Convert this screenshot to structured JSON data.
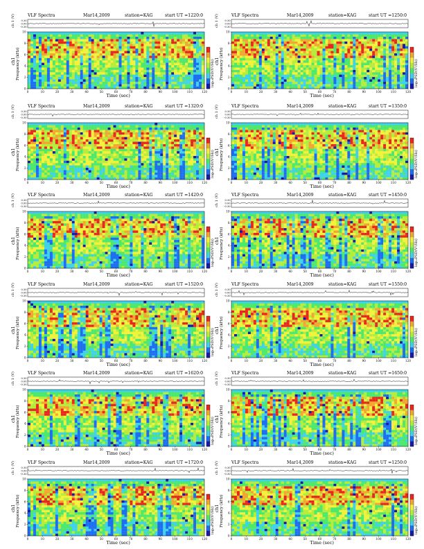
{
  "panels": [
    {
      "header": {
        "left": "VLF Spectra",
        "date": "Mar14,2009",
        "station": "station=KAG",
        "ut": "start  UT  =1220:0"
      },
      "ylabel": "Frequency  (kHz)",
      "chlabel": "ch1",
      "amplabel": "ch 1 (V)",
      "xlabel": "Time  (sec)",
      "cbar_label": "log₁₀PSD(V²/Hz)"
    },
    {
      "header": {
        "left": "VLF Spectra",
        "date": "Mar14,2009",
        "station": "station=KAG",
        "ut": "start  UT  =1250:0"
      },
      "ylabel": "Frequency  (kHz)",
      "chlabel": "ch1",
      "amplabel": "ch 1 (V)",
      "xlabel": "Time  (sec)",
      "cbar_label": "log₁₀PSD(V²/Hz)"
    },
    {
      "header": {
        "left": "VLF Spectra",
        "date": "Mar14,2009",
        "station": "station=KAG",
        "ut": "start  UT  =1320:0"
      },
      "ylabel": "Frequency  (kHz)",
      "chlabel": "ch1",
      "amplabel": "ch 1 (V)",
      "xlabel": "Time  (sec)",
      "cbar_label": "log₁₀PSD(V²/Hz)"
    },
    {
      "header": {
        "left": "VLF Spectra",
        "date": "Mar14,2009",
        "station": "station=KAG",
        "ut": "start  UT  =1350:0"
      },
      "ylabel": "Frequency  (kHz)",
      "chlabel": "ch1",
      "amplabel": "ch 1 (V)",
      "xlabel": "Time  (sec)",
      "cbar_label": "log₁₀PSD(V²/Hz)"
    },
    {
      "header": {
        "left": "VLF Spectra",
        "date": "Mar14,2009",
        "station": "station=KAG",
        "ut": "start  UT  =1420:0"
      },
      "ylabel": "Frequency  (kHz)",
      "chlabel": "ch1",
      "amplabel": "ch 1 (V)",
      "xlabel": "Time  (sec)",
      "cbar_label": "log₁₀PSD(V²/Hz)"
    },
    {
      "header": {
        "left": "VLF Spectra",
        "date": "Mar14,2009",
        "station": "station=KAG",
        "ut": "start  UT  =1450:0"
      },
      "ylabel": "Frequency  (kHz)",
      "chlabel": "ch1",
      "amplabel": "ch 1 (V)",
      "xlabel": "Time  (sec)",
      "cbar_label": "log₁₀PSD(V²/Hz)"
    },
    {
      "header": {
        "left": "VLF Spectra",
        "date": "Mar14,2009",
        "station": "station=KAG",
        "ut": "start  UT  =1520:0"
      },
      "ylabel": "Frequency  (kHz)",
      "chlabel": "ch1",
      "amplabel": "ch 1 (V)",
      "xlabel": "Time  (sec)",
      "cbar_label": "log₁₀PSD(V²/Hz)"
    },
    {
      "header": {
        "left": "VLF Spectra",
        "date": "Mar14,2009",
        "station": "station=KAG",
        "ut": "start  UT  =1550:0"
      },
      "ylabel": "Frequency  (kHz)",
      "chlabel": "ch1",
      "amplabel": "ch 1 (V)",
      "xlabel": "Time  (sec)",
      "cbar_label": "log₁₀PSD(V²/Hz)"
    },
    {
      "header": {
        "left": "VLF Spectra",
        "date": "Mar14,2009",
        "station": "station=KAG",
        "ut": "start  UT  =1620:0"
      },
      "ylabel": "Frequency  (kHz)",
      "chlabel": "ch1",
      "amplabel": "ch 1 (V)",
      "xlabel": "Time  (sec)",
      "cbar_label": "log₁₀PSD(V²/Hz)"
    },
    {
      "header": {
        "left": "VLF Spectra",
        "date": "Mar14,2009",
        "station": "station=KAG",
        "ut": "start  UT  =1650:0"
      },
      "ylabel": "Frequency  (kHz)",
      "chlabel": "ch1",
      "amplabel": "ch 1 (V)",
      "xlabel": "Time  (sec)",
      "cbar_label": "log₁₀PSD(V²/Hz)"
    },
    {
      "header": {
        "left": "VLF Spectra",
        "date": "Mar14,2009",
        "station": "station=KAG",
        "ut": "start  UT  =1720:0"
      },
      "ylabel": "Frequency  (kHz)",
      "chlabel": "ch1",
      "amplabel": "ch 1 (V)",
      "xlabel": "Time  (sec)",
      "cbar_label": "log₁₀PSD(V²/Hz)"
    },
    {
      "header": {
        "left": "VLF Spectra",
        "date": "Mar14,2009",
        "station": "station=KAG",
        "ut": "start  UT  =1250:0"
      },
      "ylabel": "Frequency  (kHz)",
      "chlabel": "ch1",
      "amplabel": "ch 1 (V)",
      "xlabel": "Time  (sec)",
      "cbar_label": "log₁₀PSD(V²/Hz)"
    }
  ],
  "chart_data": {
    "type": "heatmap",
    "title": "",
    "xlabel": "Time  (sec)",
    "ylabel": "Frequency  (kHz)",
    "x_ticks": [
      0,
      10,
      20,
      30,
      40,
      50,
      60,
      70,
      80,
      90,
      100,
      110,
      120
    ],
    "xlim": [
      0,
      120
    ],
    "y_ticks": [
      0,
      2,
      4,
      6,
      8,
      10
    ],
    "ylim": [
      0,
      10
    ],
    "amp_ticks": [
      "0.30",
      "0.00",
      "-0.30"
    ],
    "amp_ylim": [
      -0.3,
      0.3
    ],
    "colormap": [
      "#1a1aa8",
      "#1e6ef0",
      "#3fd2e8",
      "#4ee86c",
      "#b6ec3c",
      "#f2f23c",
      "#f0a830",
      "#e8281e"
    ],
    "grid": false
  }
}
